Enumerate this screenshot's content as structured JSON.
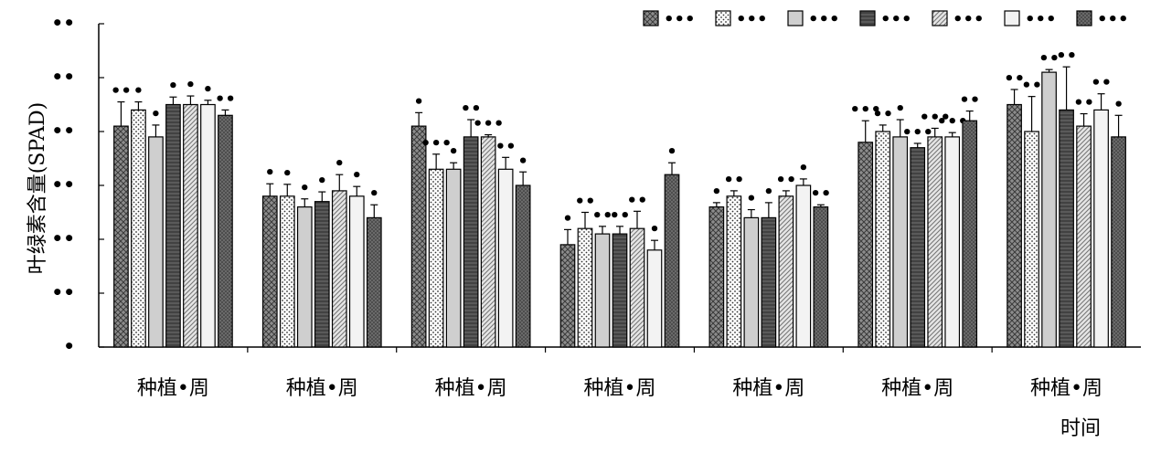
{
  "chart_data": {
    "type": "bar",
    "title": "",
    "ylabel": "叶绿素含量(SPAD)",
    "xlabel": "时间",
    "ylim": [
      0,
      60
    ],
    "y_ticks": [
      {
        "value": 0,
        "label": "•"
      },
      {
        "value": 10,
        "label": "••"
      },
      {
        "value": 20,
        "label": "••"
      },
      {
        "value": 30,
        "label": "••"
      },
      {
        "value": 40,
        "label": "••"
      },
      {
        "value": 50,
        "label": "••"
      },
      {
        "value": 60,
        "label": "••"
      }
    ],
    "categories": [
      "种植•周",
      "种植•周",
      "种植•周",
      "种植•周",
      "种植•周",
      "种植•周",
      "种植•周"
    ],
    "legend_position": "top-right",
    "series": [
      {
        "name": "•••",
        "pattern": "crosshatch",
        "values": [
          41,
          28,
          41,
          19,
          26,
          38,
          45
        ],
        "errors": [
          4.5,
          2.3,
          2.5,
          2.8,
          0.8,
          4.0,
          2.8
        ],
        "sig": [
          "••",
          "•",
          "•",
          "•",
          "•",
          "•••",
          "••"
        ]
      },
      {
        "name": "•••",
        "pattern": "dots",
        "values": [
          44,
          28,
          33,
          22,
          28,
          40,
          40
        ],
        "errors": [
          1.5,
          2.2,
          2.8,
          3.0,
          1.0,
          1.2,
          6.5
        ],
        "sig": [
          "•",
          "•",
          "•••",
          "••",
          "••",
          "••",
          "••"
        ]
      },
      {
        "name": "•••",
        "pattern": "gray",
        "values": [
          39,
          26,
          33,
          21,
          24,
          39,
          51
        ],
        "errors": [
          2.2,
          1.5,
          1.2,
          1.4,
          1.5,
          3.2,
          0.5
        ],
        "sig": [
          "•",
          "•",
          "•",
          "••",
          "•",
          "•",
          "••"
        ]
      },
      {
        "name": "•••",
        "pattern": "dark",
        "values": [
          45,
          27,
          39,
          21,
          24,
          37,
          44
        ],
        "errors": [
          1.4,
          1.8,
          3.2,
          1.4,
          2.8,
          0.8,
          8.0
        ],
        "sig": [
          "•",
          "•",
          "••",
          "••",
          "•",
          "•••",
          "••"
        ]
      },
      {
        "name": "•••",
        "pattern": "diagonal",
        "values": [
          45,
          29,
          39,
          22,
          28,
          39,
          41
        ],
        "errors": [
          1.6,
          3.0,
          0.4,
          3.2,
          1.0,
          1.6,
          2.3
        ],
        "sig": [
          "•",
          "•",
          "•••",
          "••",
          "••",
          "•••",
          "••"
        ]
      },
      {
        "name": "•••",
        "pattern": "light",
        "values": [
          45,
          28,
          33,
          18,
          30,
          39,
          44
        ],
        "errors": [
          0.8,
          1.8,
          2.2,
          1.8,
          1.2,
          0.8,
          3.0
        ],
        "sig": [
          "•",
          "•",
          "••",
          "•",
          "•",
          "•••",
          "••"
        ]
      },
      {
        "name": "•••",
        "pattern": "darkdots",
        "values": [
          43,
          24,
          30,
          32,
          26,
          42,
          39
        ],
        "errors": [
          1.0,
          2.4,
          2.5,
          2.2,
          0.4,
          1.8,
          4.0
        ],
        "sig": [
          "••",
          "•",
          "•",
          "•",
          "••",
          "••",
          "•"
        ]
      }
    ]
  }
}
